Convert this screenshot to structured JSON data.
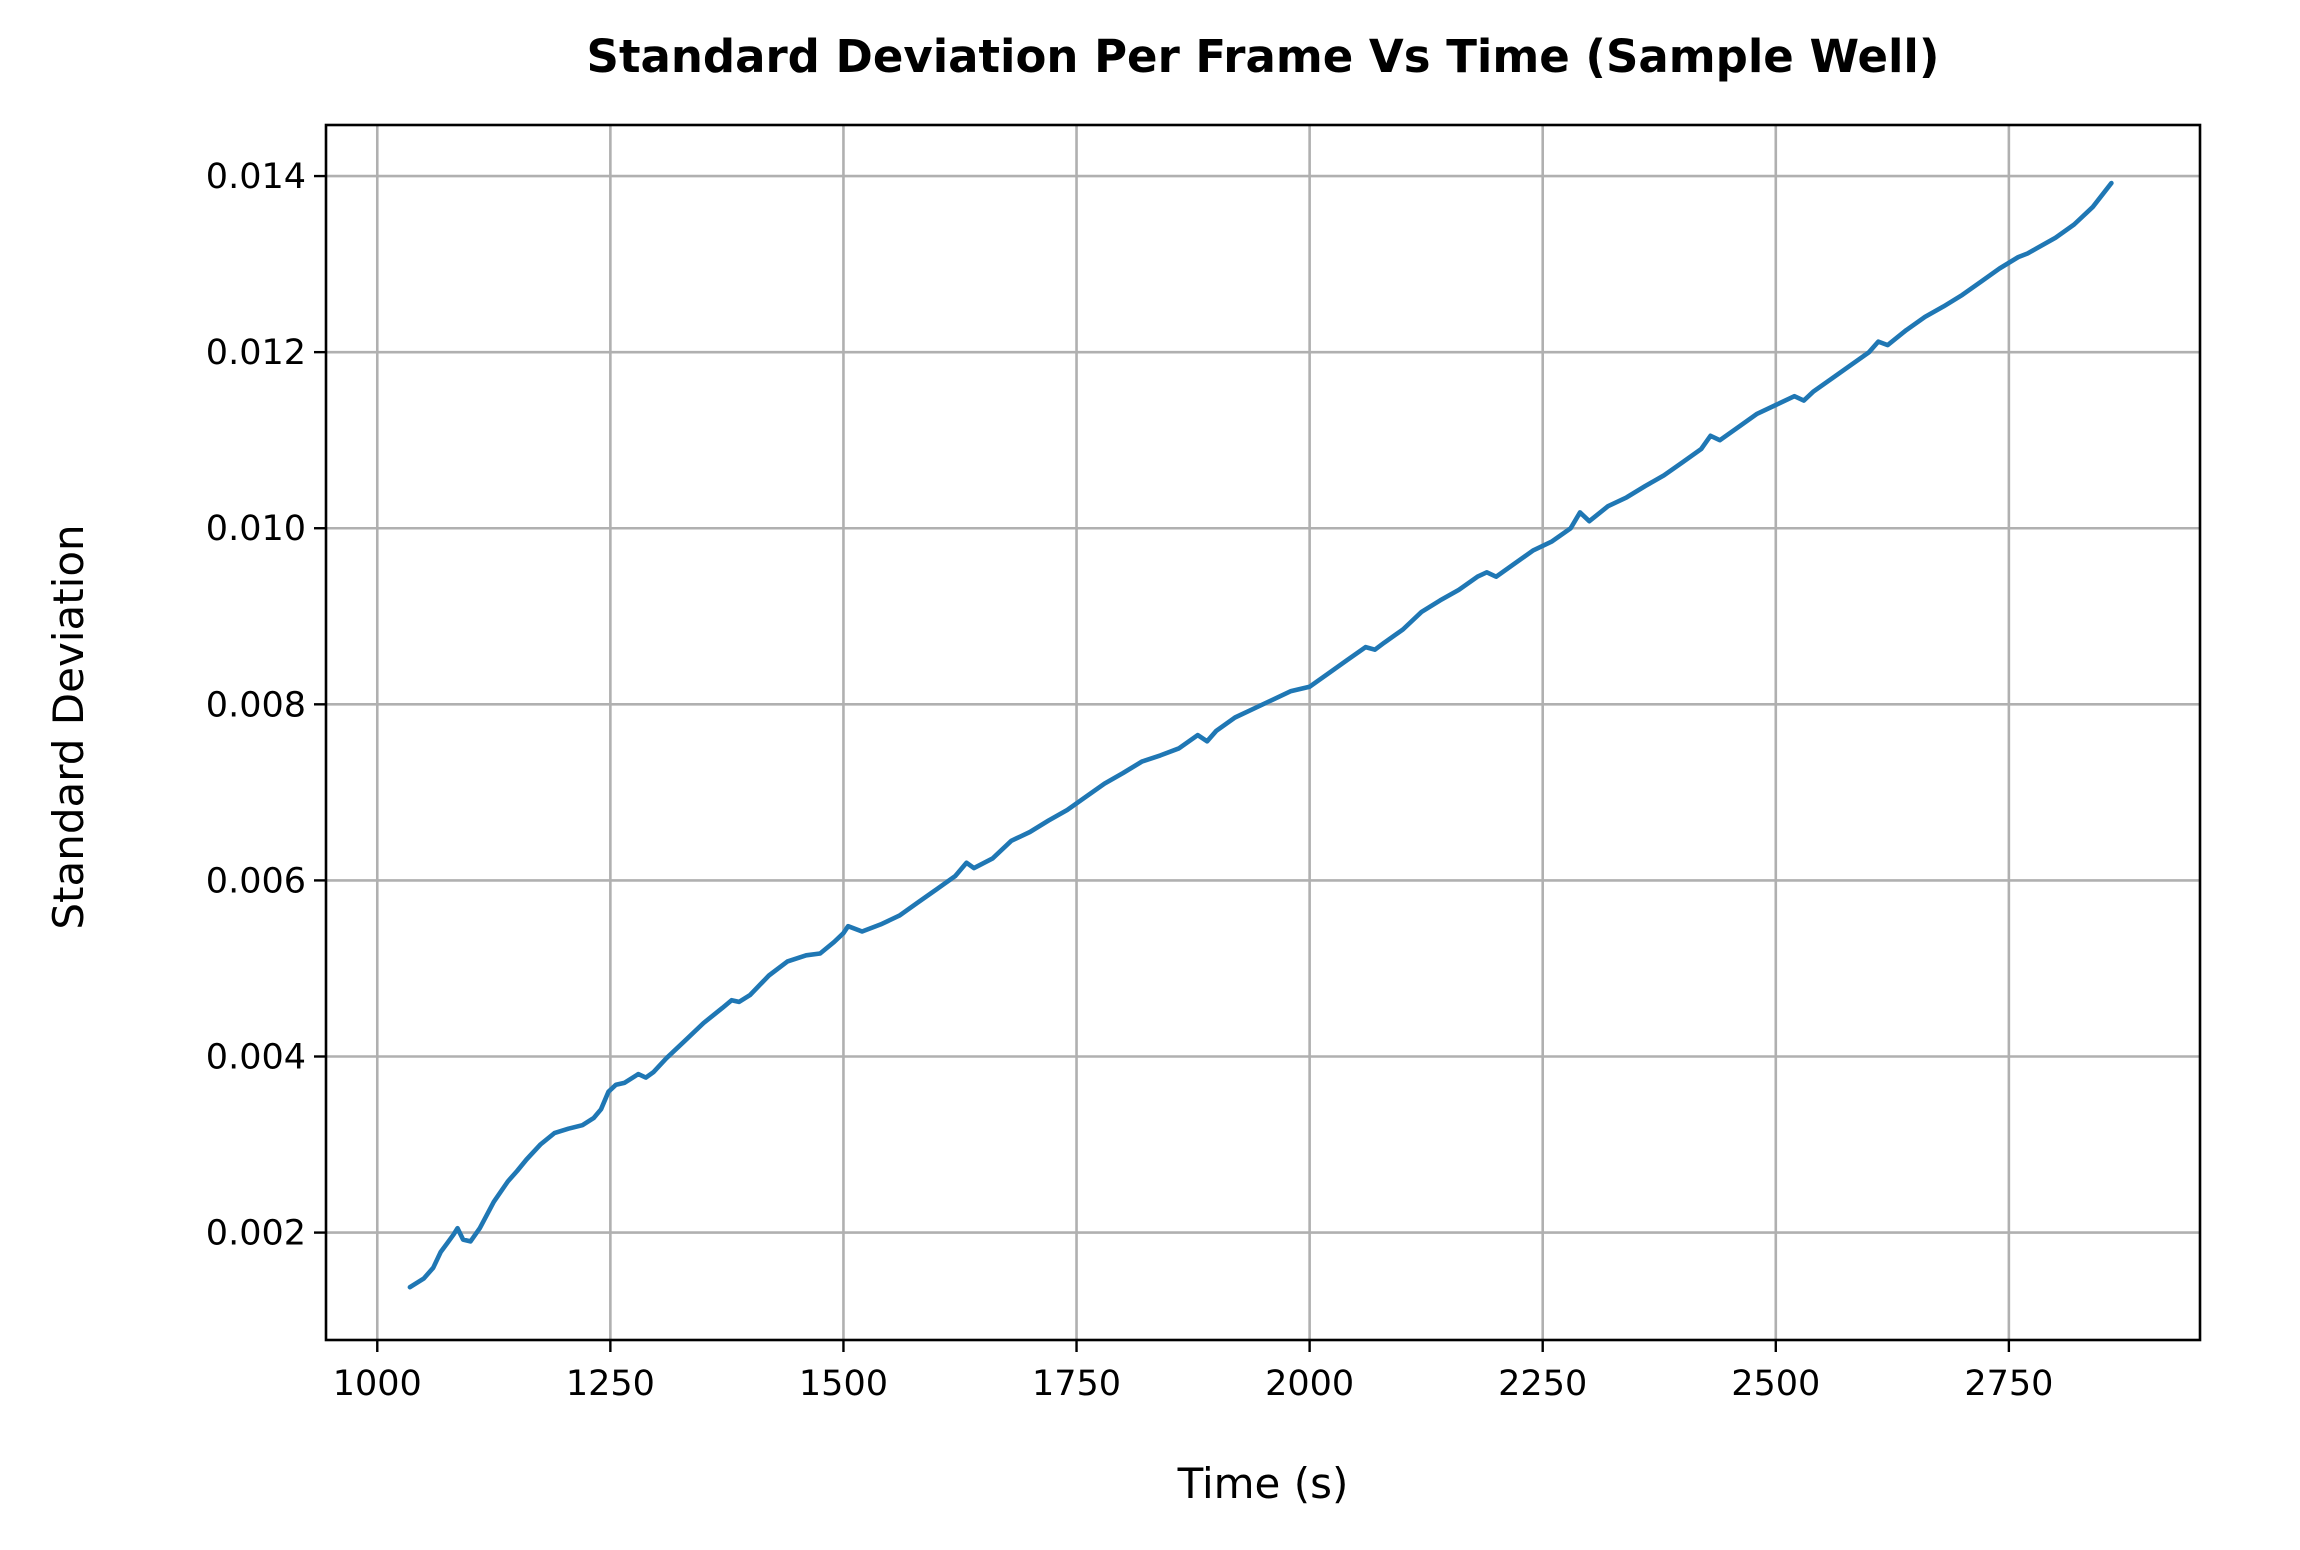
{
  "chart_data": {
    "type": "line",
    "title": "Standard Deviation Per Frame Vs Time (Sample Well)",
    "xlabel": "Time (s)",
    "ylabel": "Standard Deviation",
    "xlim": [
      945,
      2955
    ],
    "ylim": [
      0.00078,
      0.01458
    ],
    "xticks": [
      1000,
      1250,
      1500,
      1750,
      2000,
      2250,
      2500,
      2750
    ],
    "xtick_labels": [
      "1000",
      "1250",
      "1500",
      "1750",
      "2000",
      "2250",
      "2500",
      "2750"
    ],
    "yticks": [
      0.002,
      0.004,
      0.006,
      0.008,
      0.01,
      0.012,
      0.014
    ],
    "ytick_labels": [
      "0.002",
      "0.004",
      "0.006",
      "0.008",
      "0.010",
      "0.012",
      "0.014"
    ],
    "grid": true,
    "series": [
      {
        "color": "#1f77b4",
        "x": [
          1035,
          1050,
          1060,
          1068,
          1075,
          1082,
          1086,
          1092,
          1100,
          1110,
          1125,
          1140,
          1150,
          1160,
          1175,
          1190,
          1205,
          1220,
          1232,
          1240,
          1248,
          1256,
          1265,
          1280,
          1288,
          1296,
          1310,
          1330,
          1350,
          1370,
          1380,
          1388,
          1400,
          1420,
          1440,
          1460,
          1475,
          1490,
          1500,
          1505,
          1520,
          1540,
          1560,
          1580,
          1600,
          1620,
          1632,
          1640,
          1660,
          1680,
          1690,
          1700,
          1720,
          1740,
          1760,
          1780,
          1800,
          1820,
          1840,
          1860,
          1880,
          1890,
          1900,
          1920,
          1940,
          1960,
          1980,
          2000,
          2020,
          2040,
          2060,
          2070,
          2080,
          2100,
          2120,
          2140,
          2160,
          2180,
          2190,
          2200,
          2220,
          2240,
          2260,
          2280,
          2290,
          2300,
          2320,
          2340,
          2360,
          2380,
          2400,
          2420,
          2430,
          2440,
          2460,
          2480,
          2500,
          2520,
          2530,
          2540,
          2560,
          2580,
          2600,
          2610,
          2620,
          2640,
          2660,
          2680,
          2700,
          2720,
          2740,
          2760,
          2770,
          2780,
          2800,
          2820,
          2840,
          2860
        ],
        "y": [
          0.00138,
          0.00148,
          0.0016,
          0.00178,
          0.00188,
          0.00198,
          0.00205,
          0.00192,
          0.0019,
          0.00205,
          0.00235,
          0.00258,
          0.0027,
          0.00283,
          0.003,
          0.00313,
          0.00318,
          0.00322,
          0.0033,
          0.0034,
          0.0036,
          0.00368,
          0.0037,
          0.0038,
          0.00376,
          0.00382,
          0.00398,
          0.00418,
          0.00438,
          0.00455,
          0.00464,
          0.00462,
          0.0047,
          0.00492,
          0.00508,
          0.00515,
          0.00517,
          0.0053,
          0.0054,
          0.00548,
          0.00542,
          0.0055,
          0.0056,
          0.00575,
          0.0059,
          0.00605,
          0.0062,
          0.00614,
          0.00625,
          0.00645,
          0.0065,
          0.00655,
          0.00668,
          0.0068,
          0.00695,
          0.0071,
          0.00722,
          0.00735,
          0.00742,
          0.0075,
          0.00765,
          0.00758,
          0.0077,
          0.00785,
          0.00795,
          0.00805,
          0.00815,
          0.0082,
          0.00835,
          0.0085,
          0.00865,
          0.00862,
          0.0087,
          0.00885,
          0.00905,
          0.00918,
          0.0093,
          0.00945,
          0.0095,
          0.00945,
          0.0096,
          0.00975,
          0.00985,
          0.01,
          0.01018,
          0.01008,
          0.01025,
          0.01035,
          0.01048,
          0.0106,
          0.01075,
          0.0109,
          0.01105,
          0.011,
          0.01115,
          0.0113,
          0.0114,
          0.0115,
          0.01145,
          0.01155,
          0.0117,
          0.01185,
          0.012,
          0.01212,
          0.01208,
          0.01225,
          0.0124,
          0.01252,
          0.01265,
          0.0128,
          0.01295,
          0.01308,
          0.01312,
          0.01318,
          0.0133,
          0.01345,
          0.01365,
          0.01392
        ]
      }
    ]
  }
}
